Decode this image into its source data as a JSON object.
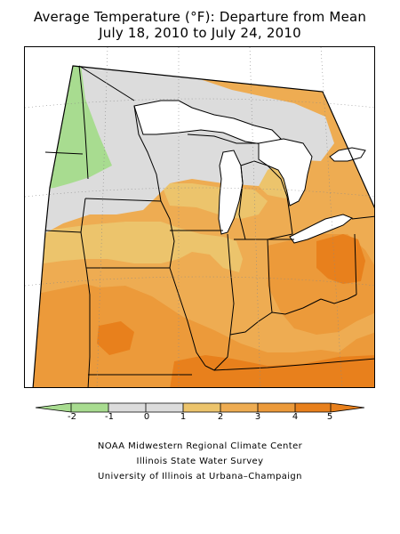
{
  "map": {
    "title": "Average Temperature (°F): Departure from Mean",
    "subtitle": "July 18, 2010 to July 24, 2010"
  },
  "legend": {
    "ticks": [
      "-2",
      "-1",
      "0",
      "1",
      "2",
      "3",
      "4",
      "5"
    ],
    "colors": {
      "lt_minus1": "#a8dc90",
      "m1_to_1": "#dcdcdc",
      "1_to_2": "#ecc46c",
      "2_to_3": "#eeac52",
      "3_to_4": "#ec9a3a",
      "gt_4": "#e8801c"
    }
  },
  "credits": {
    "line1": "NOAA Midwestern Regional Climate Center",
    "line2": "Illinois State Water Survey",
    "line3": "University of Illinois at Urbana–Champaign"
  }
}
